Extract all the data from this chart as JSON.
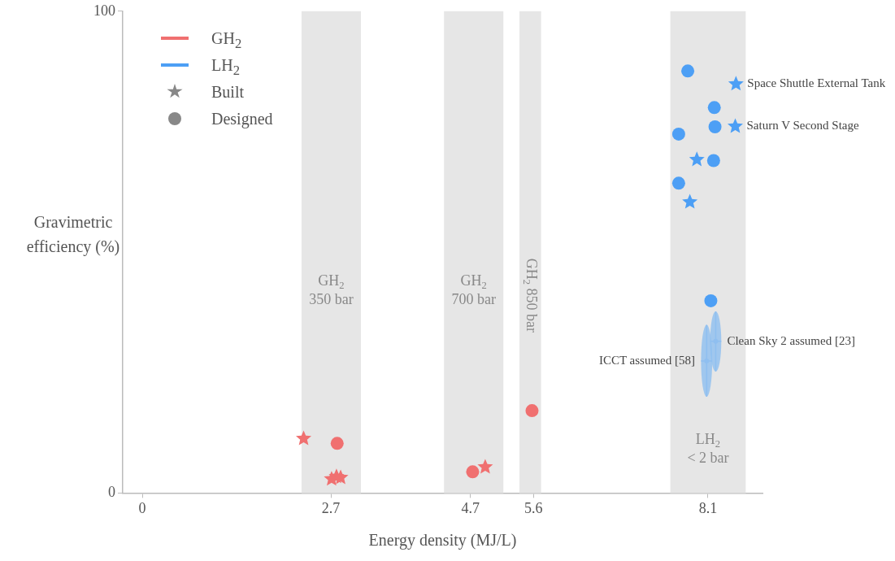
{
  "chart_data": {
    "type": "scatter",
    "xlabel": "Energy density (MJ/L)",
    "ylabel": "Gravimetric efficiency (%)",
    "xlim": [
      -0.28,
      8.88
    ],
    "xticks": [
      0,
      2.7,
      4.7,
      5.6,
      8.1
    ],
    "ylim": [
      0,
      100
    ],
    "yticks": [
      0,
      100
    ],
    "grid": false,
    "legend": "top left",
    "series": [
      {
        "name": "GH$_{2}$",
        "color": "#f07070",
        "marker": "star",
        "x": [
          2.31,
          2.71,
          2.78,
          2.84,
          4.91
        ],
        "values": [
          11.3,
          2.9,
          3.4,
          3.2,
          5.4
        ]
      },
      {
        "color": "#f07070",
        "marker": "circle",
        "x": [
          2.79,
          4.73,
          5.58
        ],
        "values": [
          10.3,
          4.4,
          17.1
        ]
      },
      {
        "name": "LH$_{2}$",
        "color": "#4d9ff5",
        "marker": "star",
        "x": [
          8.5,
          8.49,
          7.94,
          7.84
        ],
        "values": [
          84.9,
          76.1,
          69.2,
          60.4
        ]
      },
      {
        "color": "#4d9ff5",
        "marker": "circle",
        "x": [
          7.81,
          8.19,
          8.2,
          7.68,
          8.18,
          7.68,
          8.14
        ],
        "values": [
          87.6,
          80,
          76,
          74.5,
          69,
          64.3,
          39.9
        ]
      },
      {
        "color": "#8fbff0",
        "x": [
          8.08,
          8.21
        ],
        "values": [
          27.4,
          31.5
        ],
        "errors": [
          [
            20,
            34.9
          ],
          [
            25.2,
            37.7
          ]
        ],
        "xerrors": [
          0.08,
          0.08
        ]
      }
    ],
    "bands": [
      {
        "axis": "x",
        "from": 2.28,
        "to": 3.13,
        "label": "GH$_{2}$\n350 bar",
        "color": "#e6e6e6"
      },
      {
        "axis": "x",
        "from": 4.32,
        "to": 5.17,
        "label": "GH$_{2}$\n700 bar",
        "color": "#e6e6e6"
      },
      {
        "axis": "x",
        "from": 5.4,
        "to": 5.71,
        "label": "GH$_{2}$ 850 bar",
        "color": "#e6e6e6"
      },
      {
        "axis": "x",
        "from": 7.56,
        "to": 8.64,
        "label": "LH$_{2}$\n< 2 bar",
        "color": "#e6e6e6"
      }
    ],
    "annotations": [
      "Built",
      "Designed",
      {
        "text": "Space Shuttle External Tank",
        "x": 8.5,
        "y": 84.9
      },
      {
        "text": "Saturn V Second Stage",
        "x": 8.49,
        "y": 76.1
      },
      {
        "text": "Clean Sky 2 assumed [23]",
        "x": 8.21,
        "y": 31.5
      },
      {
        "text": "ICCT assumed [58]",
        "x": 8.08,
        "y": 27.4
      }
    ]
  }
}
